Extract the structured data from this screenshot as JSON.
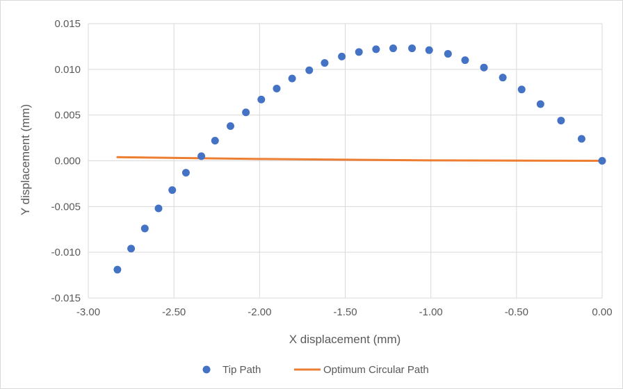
{
  "chart_data": {
    "type": "scatter",
    "title": "",
    "xlabel": "X displacement (mm)",
    "ylabel": "Y displacement (mm)",
    "xlim": [
      -3.0,
      0.0
    ],
    "ylim": [
      -0.015,
      0.015
    ],
    "x_ticks": [
      "-3.00",
      "-2.50",
      "-2.00",
      "-1.50",
      "-1.00",
      "-0.50",
      "0.00"
    ],
    "y_ticks": [
      "-0.015",
      "-0.010",
      "-0.005",
      "0.000",
      "0.005",
      "0.010",
      "0.015"
    ],
    "grid": true,
    "legend_position": "bottom",
    "series": [
      {
        "name": "Tip Path",
        "kind": "scatter",
        "color": "#4472C4",
        "points": [
          {
            "x": -2.83,
            "y": -0.0119
          },
          {
            "x": -2.75,
            "y": -0.0096
          },
          {
            "x": -2.67,
            "y": -0.0074
          },
          {
            "x": -2.59,
            "y": -0.0052
          },
          {
            "x": -2.51,
            "y": -0.0032
          },
          {
            "x": -2.43,
            "y": -0.0013
          },
          {
            "x": -2.34,
            "y": 0.0005
          },
          {
            "x": -2.26,
            "y": 0.0022
          },
          {
            "x": -2.17,
            "y": 0.0038
          },
          {
            "x": -2.08,
            "y": 0.0053
          },
          {
            "x": -1.99,
            "y": 0.0067
          },
          {
            "x": -1.9,
            "y": 0.0079
          },
          {
            "x": -1.81,
            "y": 0.009
          },
          {
            "x": -1.71,
            "y": 0.0099
          },
          {
            "x": -1.62,
            "y": 0.0107
          },
          {
            "x": -1.52,
            "y": 0.0114
          },
          {
            "x": -1.42,
            "y": 0.0119
          },
          {
            "x": -1.32,
            "y": 0.0122
          },
          {
            "x": -1.22,
            "y": 0.0123
          },
          {
            "x": -1.11,
            "y": 0.0123
          },
          {
            "x": -1.01,
            "y": 0.0121
          },
          {
            "x": -0.9,
            "y": 0.0117
          },
          {
            "x": -0.8,
            "y": 0.011
          },
          {
            "x": -0.69,
            "y": 0.0102
          },
          {
            "x": -0.58,
            "y": 0.0091
          },
          {
            "x": -0.47,
            "y": 0.0078
          },
          {
            "x": -0.36,
            "y": 0.0062
          },
          {
            "x": -0.24,
            "y": 0.0044
          },
          {
            "x": -0.12,
            "y": 0.0024
          },
          {
            "x": 0.0,
            "y": 0.0
          }
        ]
      },
      {
        "name": "Optimum Circular Path",
        "kind": "line",
        "color": "#ED7D31",
        "points": [
          {
            "x": -2.83,
            "y": 0.0004
          },
          {
            "x": -2.0,
            "y": 0.0002
          },
          {
            "x": -1.0,
            "y": 5e-05
          },
          {
            "x": 0.0,
            "y": 0.0
          }
        ]
      }
    ]
  }
}
